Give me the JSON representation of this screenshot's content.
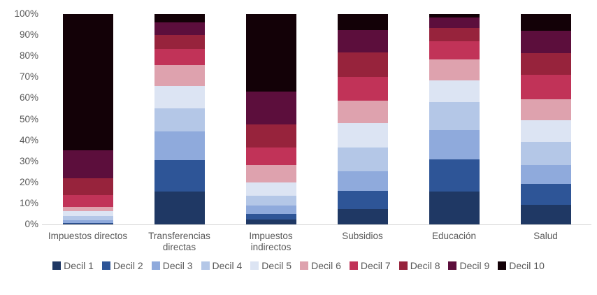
{
  "chart_data": {
    "type": "bar",
    "stacked": true,
    "percent_stacked": true,
    "title": "",
    "xlabel": "",
    "ylabel": "",
    "grid": false,
    "legend_position": "bottom",
    "background_color": "#ffffff",
    "axis_text_color": "#595959",
    "baseline_color": "#d9d9d9",
    "y_axis": {
      "min": 0,
      "max": 100,
      "unit": "%",
      "ticks": [
        "100%",
        "90%",
        "80%",
        "70%",
        "60%",
        "50%",
        "40%",
        "30%",
        "20%",
        "10%",
        "0%"
      ]
    },
    "categories": [
      "Impuestos directos",
      "Transferencias directas",
      "Impuestos indirectos",
      "Subsidios",
      "Educación",
      "Salud"
    ],
    "series": [
      {
        "name": "Decil 1",
        "color": "#1F3864",
        "values": [
          0.2,
          15.5,
          2.2,
          7.2,
          15.5,
          9.4
        ]
      },
      {
        "name": "Decil 2",
        "color": "#2E5597",
        "values": [
          0.5,
          15.0,
          2.8,
          8.8,
          15.5,
          10.0
        ]
      },
      {
        "name": "Decil 3",
        "color": "#8FAADC",
        "values": [
          1.3,
          13.8,
          3.9,
          9.4,
          13.7,
          8.8
        ]
      },
      {
        "name": "Decil 4",
        "color": "#B4C7E7",
        "values": [
          2.0,
          11.0,
          4.9,
          11.3,
          13.5,
          11.0
        ]
      },
      {
        "name": "Decil 5",
        "color": "#DCE4F3",
        "values": [
          2.3,
          10.5,
          6.1,
          11.6,
          10.3,
          10.3
        ]
      },
      {
        "name": "Decil 6",
        "color": "#DEA2AE",
        "values": [
          2.0,
          10.0,
          8.3,
          10.5,
          9.8,
          10.0
        ]
      },
      {
        "name": "Decil 7",
        "color": "#C13358",
        "values": [
          5.8,
          7.7,
          8.3,
          11.4,
          8.8,
          11.5
        ]
      },
      {
        "name": "Decil 8",
        "color": "#97233C",
        "values": [
          7.8,
          6.6,
          11.0,
          11.6,
          6.3,
          10.5
        ]
      },
      {
        "name": "Decil 9",
        "color": "#5C0E3C",
        "values": [
          13.5,
          6.0,
          15.5,
          10.5,
          4.9,
          10.5
        ]
      },
      {
        "name": "Decil 10",
        "color": "#130107",
        "values": [
          64.6,
          3.9,
          37.0,
          7.7,
          1.7,
          8.0
        ]
      }
    ]
  }
}
